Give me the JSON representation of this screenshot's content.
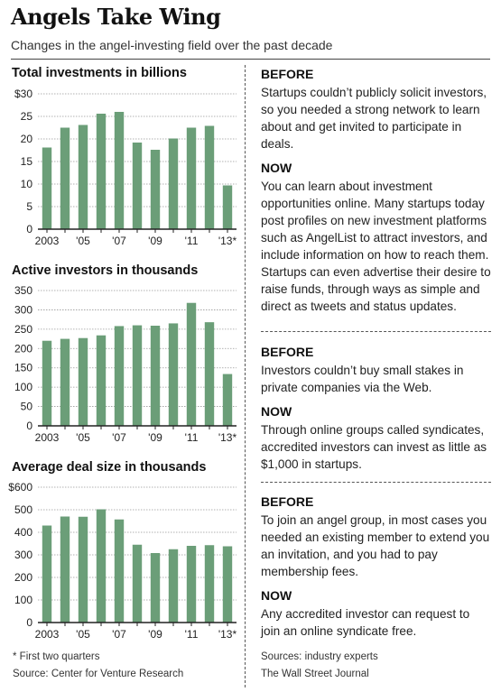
{
  "header": {
    "title": "Angels Take Wing",
    "subtitle": "Changes in the angel-investing field over the past decade"
  },
  "colors": {
    "bar": "#6b9e78",
    "axis": "#222222",
    "grid": "#999999"
  },
  "chart_data": [
    {
      "type": "bar",
      "title": "Total investments in billions",
      "categories": [
        "2003",
        "2004",
        "2005",
        "2006",
        "2007",
        "2008",
        "2009",
        "2010",
        "2011",
        "2012",
        "2013"
      ],
      "tick_labels": [
        "2003",
        "",
        "'05",
        "",
        "'07",
        "",
        "'09",
        "",
        "'11",
        "",
        "'13*"
      ],
      "values": [
        18.1,
        22.5,
        23.1,
        25.6,
        26.0,
        19.2,
        17.6,
        20.1,
        22.5,
        22.9,
        9.7
      ],
      "ylim": [
        0,
        30
      ],
      "yticks": [
        0,
        5,
        10,
        15,
        20,
        25,
        30
      ],
      "ytick_labels": [
        "0",
        "5",
        "10",
        "15",
        "20",
        "25",
        "$30"
      ],
      "grid": true
    },
    {
      "type": "bar",
      "title": "Active investors in thousands",
      "categories": [
        "2003",
        "2004",
        "2005",
        "2006",
        "2007",
        "2008",
        "2009",
        "2010",
        "2011",
        "2012",
        "2013"
      ],
      "tick_labels": [
        "2003",
        "",
        "'05",
        "",
        "'07",
        "",
        "'09",
        "",
        "'11",
        "",
        "'13*"
      ],
      "values": [
        220,
        225,
        227,
        234,
        258,
        260,
        259,
        265,
        318,
        268,
        134
      ],
      "ylim": [
        0,
        350
      ],
      "yticks": [
        0,
        50,
        100,
        150,
        200,
        250,
        300,
        350
      ],
      "ytick_labels": [
        "0",
        "50",
        "100",
        "150",
        "200",
        "250",
        "300",
        "350"
      ],
      "grid": true
    },
    {
      "type": "bar",
      "title": "Average deal size in thousands",
      "categories": [
        "2003",
        "2004",
        "2005",
        "2006",
        "2007",
        "2008",
        "2009",
        "2010",
        "2011",
        "2012",
        "2013"
      ],
      "tick_labels": [
        "2003",
        "",
        "'05",
        "",
        "'07",
        "",
        "'09",
        "",
        "'11",
        "",
        "'13*"
      ],
      "values": [
        430,
        470,
        469,
        502,
        457,
        345,
        308,
        325,
        340,
        343,
        338
      ],
      "ylim": [
        0,
        600
      ],
      "yticks": [
        0,
        100,
        200,
        300,
        400,
        500,
        600
      ],
      "ytick_labels": [
        "0",
        "100",
        "200",
        "300",
        "400",
        "500",
        "$600"
      ],
      "grid": true
    }
  ],
  "left_notes": {
    "footnote": "* First two quarters",
    "source": "Source: Center for Venture Research"
  },
  "sections": [
    {
      "before_head": "BEFORE",
      "before_text": "Startups couldn’t publicly solicit investors, so you needed a strong network to learn about and get invited to participate in deals.",
      "now_head": "NOW",
      "now_text": "You can learn about investment opportunities online. Many startups today post profiles on new investment platforms such as AngelList to attract investors, and include information on how to reach them. Startups can even advertise their desire to raise funds, through ways as simple and direct as tweets and status updates."
    },
    {
      "before_head": "BEFORE",
      "before_text": "Investors couldn’t buy small stakes in private companies via the Web.",
      "now_head": "NOW",
      "now_text": "Through online groups called syndicates, accredited investors can invest as little as $1,000 in startups."
    },
    {
      "before_head": "BEFORE",
      "before_text": "To join an angel group, in most cases you needed an existing member to extend you an invitation, and you had to pay membership fees.",
      "now_head": "NOW",
      "now_text": "Any accredited investor can request to join an online syndicate free."
    }
  ],
  "right_notes": {
    "sources": "Sources: industry experts",
    "credit": "The Wall Street Journal"
  }
}
